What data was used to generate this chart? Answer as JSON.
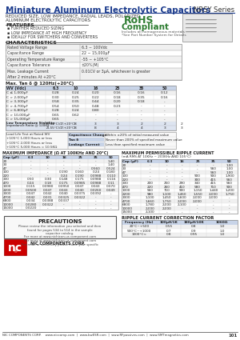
{
  "title": "Miniature Aluminum Electrolytic Capacitors",
  "series": "NRSY Series",
  "subtitle1": "REDUCED SIZE, LOW IMPEDANCE, RADIAL LEADS, POLARIZED",
  "subtitle2": "ALUMINUM ELECTROLYTIC CAPACITORS",
  "rohs": "RoHS",
  "compliant": "Compliant",
  "rohs_sub": "Includes all homogeneous materials",
  "rohs_note": "*See Part Number System for Details",
  "features_title": "FEATURES",
  "features": [
    "FURTHER REDUCED SIZING",
    "LOW IMPEDANCE AT HIGH FREQUENCY",
    "IDEALLY FOR SWITCHERS AND CONVERTERS"
  ],
  "char_title": "CHARACTERISTICS",
  "tan_headers": [
    "WV (Vdc)",
    "6.3",
    "10",
    "16",
    "25",
    "35",
    "50"
  ],
  "tan_rows": [
    [
      "C ≤ 1,000μF",
      "0.28",
      "0.24",
      "0.20",
      "0.16",
      "0.16",
      "0.12"
    ],
    [
      "C > 2,000μF",
      "0.30",
      "0.25",
      "0.22",
      "0.18",
      "0.35",
      "0.16"
    ],
    [
      "C > 3,300μF",
      "0.58",
      "0.35",
      "0.44",
      "0.20",
      "0.18",
      "-"
    ],
    [
      "C > 4,700μF",
      "0.54",
      "0.50",
      "0.48",
      "0.23",
      "-",
      "-"
    ],
    [
      "C > 6,800μF",
      "0.28",
      "0.24",
      "0.80",
      "-",
      "-",
      "-"
    ],
    [
      "C > 10,000μF",
      "0.65",
      "0.62",
      "-",
      "-",
      "-",
      "-"
    ],
    [
      "C > 15,000μF",
      "0.65",
      "-",
      "-",
      "-",
      "-",
      "-"
    ]
  ],
  "max_imp_title": "MAXIMUM IMPEDANCE (Ω AT 100KHz AND 20°C)",
  "max_imp_headers": [
    "Cap (μF)",
    "6.3",
    "10",
    "16",
    "25",
    "35",
    "50"
  ],
  "max_imp_rows": [
    [
      "20",
      "-",
      "-",
      "-",
      "-",
      "-",
      "1.40"
    ],
    [
      "33",
      "-",
      "-",
      "-",
      "-",
      "-",
      "1.40"
    ],
    [
      "47",
      "-",
      "-",
      "-",
      "-",
      "0.560",
      "0.524"
    ],
    [
      "100",
      "-",
      "-",
      "0.190",
      "0.160",
      "0.24",
      "0.180"
    ],
    [
      "220",
      "-",
      "-",
      "0.24",
      "0.190",
      "0.0988",
      "0.110"
    ],
    [
      "330",
      "0.50",
      "0.30",
      "0.148",
      "0.175",
      "0.0988",
      "0.116"
    ],
    [
      "470",
      "0.24",
      "0.18",
      "0.175",
      "0.0985",
      "0.0988",
      "0.11"
    ],
    [
      "1000",
      "0.115",
      "0.0980",
      "0.0950",
      "0.047",
      "0.043",
      "0.070"
    ],
    [
      "2200",
      "0.0500",
      "0.047",
      "0.043",
      "0.040",
      "0.0260",
      "0.049"
    ],
    [
      "3300",
      "0.047",
      "0.042",
      "0.040",
      "0.0375",
      "0.0392",
      "-"
    ],
    [
      "4700",
      "0.042",
      "0.031",
      "0.0325",
      "0.0322",
      "-",
      "-"
    ],
    [
      "6800",
      "0.034",
      "0.0388",
      "0.0337",
      "-",
      "-",
      "-"
    ],
    [
      "10000",
      "0.0280",
      "0.0322",
      "-",
      "-",
      "-",
      "-"
    ],
    [
      "15000",
      "0.0220",
      "-",
      "-",
      "-",
      "-",
      "-"
    ]
  ],
  "ripple_title": "MAXIMUM PERMISSIBLE RIPPLE CURRENT",
  "ripple_sub": "(mA RMS AT 10KHz ~ 200KHz AND 105°C)",
  "ripple_headers": [
    "Cap (μF)",
    "6.3",
    "10",
    "16",
    "25",
    "35",
    "50"
  ],
  "ripple_rows": [
    [
      "20",
      "-",
      "-",
      "-",
      "-",
      "-",
      "1.00"
    ],
    [
      "33",
      "-",
      "-",
      "-",
      "-",
      "560",
      "1.00"
    ],
    [
      "47",
      "-",
      "-",
      "-",
      "-",
      "560",
      "1.00"
    ],
    [
      "100",
      "-",
      "-",
      "-",
      "900",
      "900",
      "1,900"
    ],
    [
      "220",
      "-",
      "-",
      "-",
      "300",
      "415",
      "560"
    ],
    [
      "330",
      "200",
      "250",
      "290",
      "340",
      "415",
      "560"
    ],
    [
      "470",
      "220",
      "260",
      "410",
      "580",
      "710",
      "900"
    ],
    [
      "1000",
      "560",
      "710",
      "900",
      "1,150",
      "1,440",
      "1,200"
    ],
    [
      "2200",
      "980",
      "1,100",
      "1,460",
      "1,550",
      "2,000",
      "1,750"
    ],
    [
      "3300",
      "1,100",
      "1,450",
      "1,600",
      "2,000",
      "2,000",
      "-"
    ],
    [
      "4700",
      "1,660",
      "1,750",
      "2,000",
      "2,000",
      "-",
      "-"
    ],
    [
      "6800",
      "1,780",
      "2,000",
      "2,100",
      "-",
      "-",
      "-"
    ],
    [
      "10000",
      "2,000",
      "2,000",
      "-",
      "-",
      "-",
      "-"
    ],
    [
      "15000",
      "2,100",
      "-",
      "-",
      "-",
      "-",
      "-"
    ]
  ],
  "correction_title": "RIPPLE CURRENT CORRECTION FACTOR",
  "correction_headers": [
    "Frequency (Hz)",
    "100μH/1K",
    "180μH/10K",
    "1060Ω"
  ],
  "correction_rows": [
    [
      "20°C~+500",
      "0.55",
      "0.8",
      "1.0"
    ],
    [
      "500°C~+1000",
      "0.7",
      "0.9",
      "1.0"
    ],
    [
      "1000°C<",
      "0.8",
      "0.95",
      "1.0"
    ]
  ],
  "precautions_title": "PRECAUTIONS",
  "footer": "NIC COMPONENTS CORP.    www.niccomp.com  |  www.bwESR.com  |  www.RFpassives.com  |  www.SMTmagnetics.com",
  "page_num": "101",
  "bg_color": "#ffffff",
  "header_blue": "#1a3a8c",
  "table_header_bg": "#c8d4e8",
  "rohs_green": "#2e7d32",
  "alt_row": "#f0f0f0"
}
